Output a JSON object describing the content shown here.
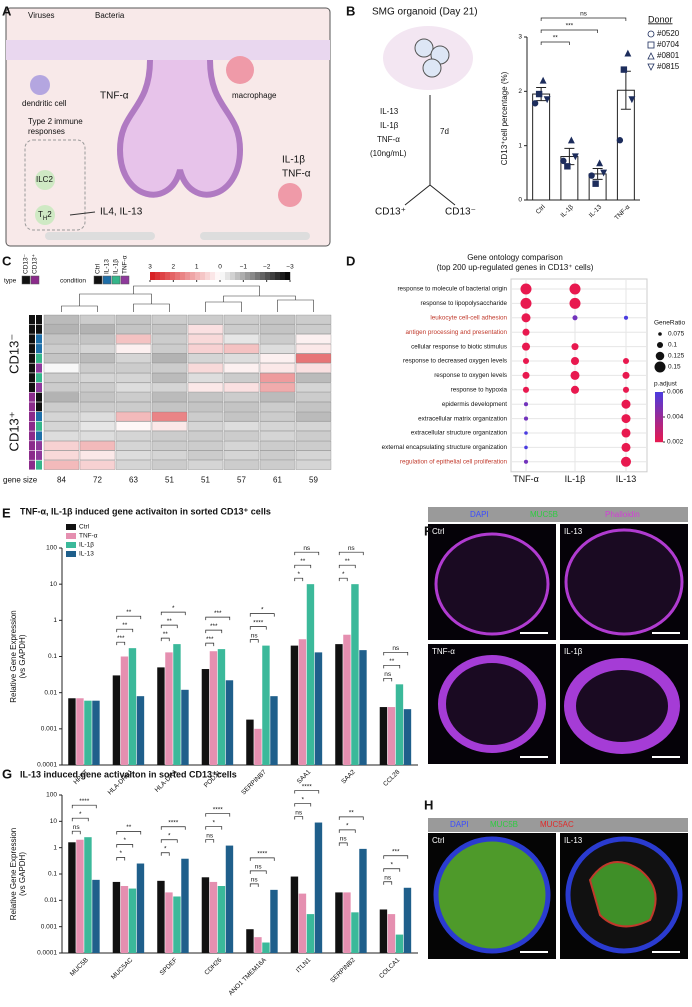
{
  "panel_letters": [
    "A",
    "B",
    "C",
    "D",
    "E",
    "F",
    "G",
    "H"
  ],
  "panel_a": {
    "labels": [
      "Viruses",
      "Bacteria",
      "dendritic cell",
      "TNF-α",
      "macrophage",
      "Type 2 immune",
      "responses",
      "ILC2",
      "IL-1β",
      "TNF-α",
      "IL4, IL-13"
    ],
    "th2": [
      "T",
      "H",
      "2"
    ]
  },
  "panel_b_schematic": {
    "title": "SMG organoid (Day 21)",
    "treatments": [
      "IL-13",
      "IL-1β",
      "TNF-α",
      "(10ng/mL)"
    ],
    "duration": "7d",
    "outcomes": [
      "CD13⁺",
      "CD13⁻"
    ]
  },
  "panel_f": {
    "channels": [
      "DAPI",
      "MUC5B",
      "Phalloidin"
    ],
    "conditions": [
      "Ctrl",
      "IL-13",
      "TNF-α",
      "IL-1β"
    ]
  },
  "panel_h": {
    "channels": [
      "DAPI",
      "MUC5B",
      "MUC5AC"
    ],
    "conditions": [
      "Ctrl",
      "IL-13"
    ]
  },
  "chart_data": [
    {
      "type": "bar",
      "categories": [
        "Ctrl",
        "IL-1β",
        "IL-13",
        "TNF-α"
      ],
      "values": [
        1.95,
        0.8,
        0.48,
        2.02
      ],
      "errors": [
        0.12,
        0.15,
        0.1,
        0.35
      ],
      "color": "#ffffff",
      "point_color": "#1d2d5c",
      "ylabel": "CD13⁺cell percentage (%)",
      "ylim": [
        0,
        3
      ],
      "yticks": [
        0,
        1,
        2,
        3
      ],
      "legend_title": "Donor",
      "points": [
        {
          "name": "#0520",
          "marker": "circle",
          "values": [
            1.78,
            0.72,
            0.45,
            1.1
          ]
        },
        {
          "name": "#0704",
          "marker": "square",
          "values": [
            1.95,
            0.62,
            0.3,
            2.4
          ]
        },
        {
          "name": "#0801",
          "marker": "triangle",
          "values": [
            2.2,
            1.1,
            0.68,
            2.7
          ]
        },
        {
          "name": "#0815",
          "marker": "triangle-down",
          "values": [
            1.85,
            0.8,
            0.5,
            1.85
          ]
        }
      ],
      "significance": [
        {
          "pair": [
            0,
            1
          ],
          "label": "**"
        },
        {
          "pair": [
            0,
            2
          ],
          "label": "***"
        },
        {
          "pair": [
            0,
            3
          ],
          "label": "ns"
        }
      ]
    },
    {
      "type": "heatmap",
      "type_label": "type",
      "condition_label": "condition",
      "gene_size_label": "gene size",
      "types": [
        {
          "name": "CD13⁻",
          "color": "#111111"
        },
        {
          "name": "CD13⁺",
          "color": "#8b2b8b"
        }
      ],
      "conditions": [
        {
          "name": "Ctrl",
          "color": "#111111"
        },
        {
          "name": "IL-13",
          "color": "#1f6fa8"
        },
        {
          "name": "IL-1β",
          "color": "#35b58a"
        },
        {
          "name": "TNF-α",
          "color": "#8e3a9b"
        }
      ],
      "row_types": [
        0,
        0,
        0,
        0,
        0,
        0,
        0,
        0,
        1,
        1,
        1,
        1,
        1,
        1,
        1,
        1
      ],
      "row_conditions": [
        0,
        0,
        1,
        1,
        2,
        3,
        2,
        3,
        0,
        0,
        1,
        2,
        1,
        3,
        3,
        2
      ],
      "colorbar_ticks": [
        3,
        2,
        1,
        0,
        {
          "value": -1,
          "label": "−1"
        },
        {
          "value": -2,
          "label": "−2"
        },
        {
          "value": -3,
          "label": "−3"
        }
      ],
      "colors": [
        "#d7191c",
        "#ffffff",
        "#000000"
      ],
      "gene_size": [
        84,
        72,
        63,
        51,
        51,
        57,
        61,
        59
      ],
      "values": [
        [
          -0.8,
          -0.6,
          -0.7,
          -0.6,
          -0.6,
          -0.6,
          -0.7,
          -0.6
        ],
        [
          -0.9,
          -0.9,
          -0.7,
          -0.7,
          0.4,
          -0.6,
          -0.7,
          -0.6
        ],
        [
          -0.7,
          -0.7,
          0.8,
          -0.6,
          0.5,
          -0.3,
          -0.6,
          0.2
        ],
        [
          -0.6,
          -0.5,
          0.2,
          -0.6,
          0.6,
          0.8,
          -0.4,
          0.3
        ],
        [
          -0.7,
          -0.8,
          -0.5,
          -0.9,
          -0.5,
          -0.4,
          0.2,
          1.8
        ],
        [
          -0.1,
          -0.6,
          -0.6,
          -0.6,
          0.5,
          0.2,
          0.3,
          0.4
        ],
        [
          -0.6,
          -0.5,
          -0.5,
          -0.8,
          -0.4,
          -0.6,
          1.3,
          -0.8
        ],
        [
          -0.6,
          -0.6,
          -0.4,
          -0.5,
          0.3,
          0.4,
          1.1,
          -0.5
        ],
        [
          -0.9,
          -0.7,
          -0.6,
          -0.8,
          -0.7,
          -0.6,
          -0.8,
          -0.6
        ],
        [
          -0.6,
          -0.6,
          -0.6,
          -0.7,
          -0.7,
          -0.7,
          -0.6,
          -0.7
        ],
        [
          -0.5,
          -0.4,
          0.9,
          1.6,
          -0.6,
          -0.7,
          -0.6,
          -0.8
        ],
        [
          -0.5,
          -0.3,
          0.1,
          0.3,
          -0.5,
          -0.4,
          -0.5,
          -0.5
        ],
        [
          -0.4,
          -0.4,
          -0.5,
          -0.6,
          -0.6,
          -0.6,
          -0.5,
          -0.6
        ],
        [
          0.6,
          0.9,
          -0.5,
          -0.6,
          -0.6,
          -0.5,
          -0.6,
          -0.6
        ],
        [
          0.5,
          0.3,
          -0.4,
          -0.5,
          -0.6,
          -0.5,
          -0.6,
          -0.5
        ],
        [
          0.9,
          0.6,
          -0.5,
          -0.6,
          -0.5,
          -0.6,
          -0.6,
          -0.5
        ]
      ]
    },
    {
      "type": "dot",
      "title": "Gene ontology comparison",
      "subtitle": "(top 200 up-regulated genes in CD13⁺ cells)",
      "terms": [
        "response to molecule of bacterial origin",
        "response to lipopolysaccharide",
        "leukocyte cell-cell adhesion",
        "antigen processing and presentation",
        "cellular response to biotic stimulus",
        "response to decreased oxygen levels",
        "response to oxygen levels",
        "response to hypoxia",
        "epidermis development",
        "extracellular matrix organization",
        "extracellular structure organization",
        "external encapsulating structure organization",
        "regulation of epithelial cell proliferation"
      ],
      "highlighted": [
        false,
        false,
        true,
        true,
        false,
        false,
        false,
        false,
        false,
        false,
        false,
        false,
        true
      ],
      "highlight_color": "#c0392b",
      "size_title": "GeneRatio",
      "size_ticks": [
        0.075,
        0.1,
        0.125,
        0.15
      ],
      "color_title": "p.adjust",
      "color_ticks": [
        0.006,
        0.004,
        0.002
      ],
      "color_scale": [
        "#4a3ce0",
        "#e8194f"
      ],
      "series": [
        {
          "name": "TNF-α",
          "gene_ratio": [
            0.15,
            0.15,
            0.13,
            0.11,
            0.12,
            0.1,
            0.11,
            0.1,
            0.08,
            0.08,
            0.075,
            0.075,
            0.08
          ],
          "p_adjust": [
            0.001,
            0.001,
            0.002,
            0.002,
            0.002,
            0.002,
            0.002,
            0.002,
            0.005,
            0.005,
            0.006,
            0.006,
            0.005
          ]
        },
        {
          "name": "IL-1β",
          "gene_ratio": [
            0.15,
            0.15,
            0.09,
            null,
            0.11,
            0.12,
            0.13,
            0.12,
            null,
            null,
            null,
            null,
            null
          ],
          "p_adjust": [
            0.001,
            0.001,
            0.005,
            null,
            0.002,
            0.002,
            0.002,
            0.002,
            null,
            null,
            null,
            null,
            null
          ]
        },
        {
          "name": "IL-13",
          "gene_ratio": [
            null,
            null,
            0.08,
            null,
            null,
            0.1,
            0.11,
            0.1,
            0.13,
            0.13,
            0.13,
            0.13,
            0.14
          ],
          "p_adjust": [
            null,
            null,
            0.006,
            null,
            null,
            0.002,
            0.002,
            0.002,
            0.002,
            0.002,
            0.002,
            0.002,
            0.002
          ]
        }
      ]
    },
    {
      "type": "bar",
      "log_scale": true,
      "title": "TNF-α, IL-1β induced gene activaiton in sorted CD13⁺ cells",
      "ylabel": [
        "Relative Gene Expression",
        "(vs GAPDH)"
      ],
      "ylim": [
        0.0001,
        100
      ],
      "yticks": [
        0.0001,
        0.001,
        0.01,
        0.1,
        1,
        10,
        100
      ],
      "categories": [
        "HPRT",
        "HLA-DRB1",
        "HLA-DRA",
        "PODXL",
        "SERPINB7",
        "SAA1",
        "SAA2",
        "CCL28"
      ],
      "series": [
        {
          "name": "Ctrl",
          "color": "#111111",
          "values": [
            0.007,
            0.03,
            0.05,
            0.045,
            0.0018,
            0.2,
            0.22,
            0.004
          ]
        },
        {
          "name": "TNF-α",
          "color": "#e58fb0",
          "values": [
            0.007,
            0.1,
            0.13,
            0.14,
            0.001,
            0.3,
            0.4,
            0.004
          ]
        },
        {
          "name": "IL-1β",
          "color": "#3bb99a",
          "values": [
            0.006,
            0.17,
            0.22,
            0.16,
            0.2,
            10,
            10,
            0.017
          ]
        },
        {
          "name": "IL-13",
          "color": "#1f5f8b",
          "values": [
            0.006,
            0.008,
            0.012,
            0.022,
            0.008,
            0.13,
            0.15,
            0.0035
          ]
        }
      ],
      "significance": [
        [],
        [
          "**",
          "**",
          "***"
        ],
        [
          "*",
          "**",
          "**"
        ],
        [
          "***",
          "***",
          "***"
        ],
        [
          "*",
          "****",
          "ns"
        ],
        [
          "ns",
          "**",
          "*"
        ],
        [
          "ns",
          "**",
          "*"
        ],
        [
          "ns",
          "**",
          "ns"
        ]
      ]
    },
    {
      "type": "bar",
      "log_scale": true,
      "title": "IL-13 induced gene activaiton in sorted CD13⁺cells",
      "ylabel": [
        "Relative Gene Expression",
        "(vs GAPDH)"
      ],
      "ylim": [
        0.0001,
        100
      ],
      "yticks": [
        0.0001,
        0.001,
        0.01,
        0.1,
        1,
        10,
        100
      ],
      "categories": [
        "MUC5B",
        "MUC5AC",
        "SPDEF",
        "CDH26",
        "ANO1 TMEM16A",
        "ITLN1",
        "SERPINB2",
        "COLCA1"
      ],
      "series": [
        {
          "color": "#111111",
          "values": [
            1.6,
            0.05,
            0.055,
            0.075,
            0.0008,
            0.08,
            0.02,
            0.0045
          ]
        },
        {
          "color": "#e58fb0",
          "values": [
            2,
            0.035,
            0.02,
            0.05,
            0.0004,
            0.018,
            0.02,
            0.003
          ]
        },
        {
          "color": "#3bb99a",
          "values": [
            2.5,
            0.028,
            0.014,
            0.035,
            0.00025,
            0.003,
            0.0035,
            0.0005
          ]
        },
        {
          "color": "#1f5f8b",
          "values": [
            0.06,
            0.25,
            0.38,
            1.2,
            0.025,
            9,
            0.9,
            0.03
          ]
        }
      ],
      "significance": [
        [
          "****",
          "*",
          "ns"
        ],
        [
          "**",
          "*",
          "*"
        ],
        [
          "****",
          "*",
          "*"
        ],
        [
          "****",
          "*",
          "ns"
        ],
        [
          "****",
          "ns",
          "ns"
        ],
        [
          "****",
          "*",
          "ns"
        ],
        [
          "**",
          "*",
          "ns"
        ],
        [
          "***",
          "*",
          "ns"
        ]
      ]
    }
  ]
}
